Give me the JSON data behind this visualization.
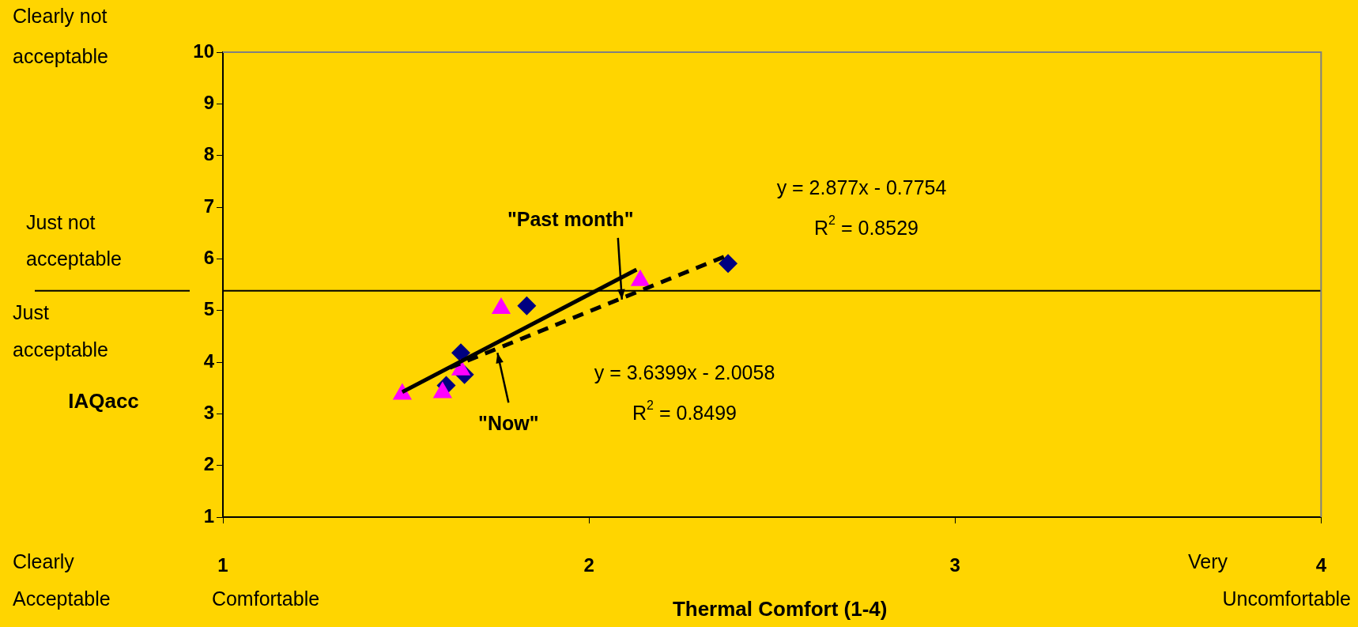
{
  "chart_data": {
    "type": "scatter",
    "xlabel": "Thermal Comfort (1-4)",
    "ylabel": "IAQacc",
    "xlim": [
      1,
      4
    ],
    "xticks": [
      1,
      2,
      3,
      4
    ],
    "ylim": [
      1,
      10
    ],
    "yticks": [
      1,
      2,
      3,
      4,
      5,
      6,
      7,
      8,
      9,
      10
    ],
    "grid": false,
    "legend": false,
    "series": [
      {
        "marker": "triangle",
        "color": "#ff00ff",
        "x": [
          1.49,
          1.6,
          1.65,
          1.76,
          2.14
        ],
        "values": [
          3.38,
          3.41,
          3.85,
          5.04,
          5.58
        ]
      },
      {
        "marker": "diamond",
        "color": "#000080",
        "x": [
          1.61,
          1.65,
          1.66,
          1.83,
          2.38
        ],
        "values": [
          3.55,
          4.18,
          3.76,
          5.09,
          5.91
        ]
      },
      {
        "type": "line",
        "marker": "none",
        "line_style": "solid",
        "color": "#000000",
        "x": [
          1.49,
          2.13
        ],
        "values": [
          3.42,
          5.79
        ]
      },
      {
        "type": "line",
        "marker": "none",
        "line_style": "dashed",
        "color": "#000000",
        "x": [
          1.62,
          2.38
        ],
        "values": [
          3.89,
          6.07
        ]
      }
    ],
    "ref_lines": [
      {
        "axis": "y",
        "value": 5.38,
        "color": "#000000"
      }
    ],
    "annotations": [
      "y = 2.877x - 0.7754",
      "R$^{2}$ = 0.8529",
      "y = 3.6399x - 2.0058",
      "R$^{2}$ = 0.8499",
      "Clearly not acceptable",
      "Just not acceptable",
      "Just acceptable",
      "Clearly Acceptable",
      "Comfortable",
      "Very Uncomfortable",
      {
        "text": "\"Past month\"",
        "x": 2.09,
        "y": 5.21
      },
      {
        "text": "\"Now\"",
        "x": 1.75,
        "y": 4.18
      }
    ]
  }
}
